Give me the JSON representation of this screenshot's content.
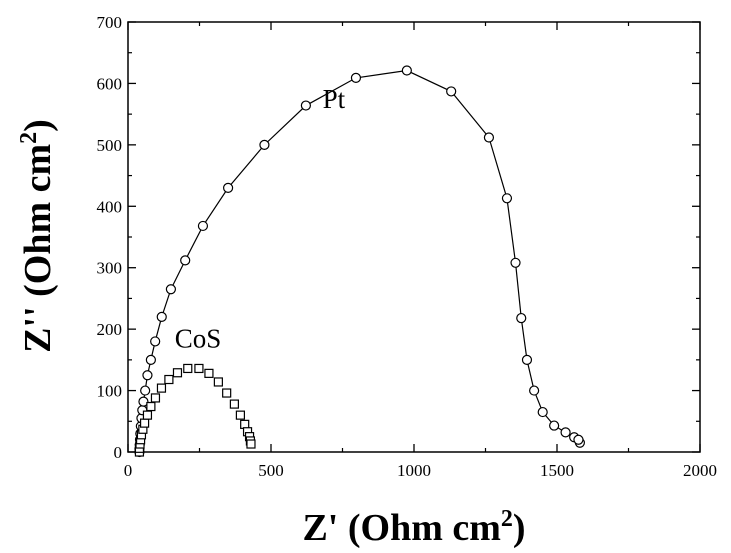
{
  "chart_data": {
    "type": "scatter",
    "title": "",
    "xlabel": "Z' (Ohm cm2)",
    "xlabel_main": "Z' (Ohm cm",
    "xlabel_sup": "2",
    "xlabel_end": ")",
    "ylabel": "Z'' (Ohm cm2)",
    "ylabel_main": "Z'' (Ohm cm",
    "ylabel_sup": "2",
    "ylabel_end": ")",
    "xlim": [
      0,
      2000
    ],
    "ylim": [
      0,
      700
    ],
    "xticks": [
      0,
      500,
      1000,
      1500,
      2000
    ],
    "yticks": [
      0,
      100,
      200,
      300,
      400,
      500,
      600,
      700
    ],
    "xtick_labels": [
      "0",
      "500",
      "1000",
      "1500",
      "2000"
    ],
    "ytick_labels": [
      "0",
      "100",
      "200",
      "300",
      "400",
      "500",
      "600",
      "700"
    ],
    "grid": false,
    "legend": "none",
    "series": [
      {
        "name": "Pt",
        "marker": "circle",
        "line": true,
        "x": [
          40,
          40,
          41,
          42,
          43,
          45,
          47,
          50,
          54,
          60,
          68,
          80,
          95,
          118,
          150,
          200,
          262,
          350,
          477,
          622,
          797,
          975,
          1130,
          1262,
          1325,
          1355,
          1375,
          1395,
          1420,
          1450,
          1490,
          1530,
          1560,
          1580,
          1575
        ],
        "y": [
          0,
          5,
          12,
          20,
          30,
          42,
          55,
          68,
          82,
          100,
          125,
          150,
          180,
          220,
          265,
          312,
          368,
          430,
          500,
          564,
          609,
          621,
          587,
          512,
          413,
          308,
          218,
          150,
          100,
          65,
          43,
          32,
          24,
          15,
          20
        ]
      },
      {
        "name": "CoS",
        "marker": "square",
        "line": false,
        "x": [
          40,
          40,
          42,
          44,
          47,
          52,
          58,
          68,
          80,
          96,
          117,
          143,
          173,
          209,
          248,
          283,
          316,
          345,
          372,
          393,
          408,
          418,
          425,
          428,
          430
        ],
        "y": [
          0,
          6,
          13,
          20,
          28,
          37,
          47,
          60,
          74,
          88,
          104,
          118,
          129,
          136,
          136,
          128,
          114,
          96,
          78,
          60,
          45,
          33,
          25,
          18,
          13
        ]
      }
    ],
    "annotations": [
      {
        "text": "Pt",
        "x": 720,
        "y": 560
      },
      {
        "text": "CoS",
        "x": 245,
        "y": 170
      }
    ],
    "colors": {
      "marks": "#000000",
      "background": "#ffffff"
    }
  }
}
